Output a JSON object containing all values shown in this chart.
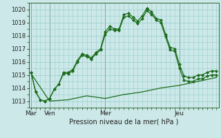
{
  "background_color": "#cce8e8",
  "grid_color": "#99cccc",
  "line_color": "#1a6b1a",
  "title": "Pression niveau de la mer( hPa )",
  "ylim": [
    1012.5,
    1020.5
  ],
  "yticks": [
    1013,
    1014,
    1015,
    1016,
    1017,
    1018,
    1019,
    1020
  ],
  "xlim": [
    -3,
    243
  ],
  "xlabel_ticks": [
    0,
    24,
    96,
    192,
    216
  ],
  "xlabel_labels": [
    "Mar",
    "Ven",
    "Mer",
    "Jeu",
    ""
  ],
  "vlines": [
    0,
    24,
    96,
    192
  ],
  "series1_x": [
    0,
    6,
    12,
    18,
    24,
    30,
    36,
    42,
    48,
    54,
    60,
    66,
    72,
    78,
    84,
    90,
    96,
    102,
    108,
    114,
    120,
    126,
    132,
    138,
    144,
    150,
    156,
    162,
    168,
    174,
    180,
    186,
    192,
    198,
    204,
    210,
    216,
    222,
    228,
    234,
    240
  ],
  "series1_y": [
    1015.2,
    1013.7,
    1013.1,
    1013.0,
    1013.2,
    1013.9,
    1014.3,
    1015.2,
    1015.2,
    1015.4,
    1016.1,
    1016.6,
    1016.5,
    1016.3,
    1016.7,
    1017.0,
    1018.3,
    1018.7,
    1018.5,
    1018.5,
    1019.6,
    1019.7,
    1019.4,
    1019.1,
    1019.5,
    1020.1,
    1019.8,
    1019.3,
    1019.2,
    1018.1,
    1017.1,
    1017.0,
    1015.8,
    1014.9,
    1014.8,
    1014.8,
    1015.0,
    1015.0,
    1015.2,
    1015.3,
    1015.3
  ],
  "series2_x": [
    0,
    6,
    12,
    18,
    24,
    30,
    36,
    42,
    48,
    54,
    60,
    66,
    72,
    78,
    84,
    90,
    96,
    102,
    108,
    114,
    120,
    126,
    132,
    138,
    144,
    150,
    156,
    162,
    168,
    174,
    180,
    186,
    192,
    198,
    204,
    210,
    216,
    222,
    228,
    234,
    240
  ],
  "series2_y": [
    1015.2,
    1013.7,
    1013.1,
    1013.0,
    1013.2,
    1013.9,
    1014.3,
    1015.1,
    1015.1,
    1015.3,
    1016.0,
    1016.5,
    1016.4,
    1016.2,
    1016.6,
    1016.9,
    1018.1,
    1018.5,
    1018.4,
    1018.4,
    1019.4,
    1019.5,
    1019.2,
    1018.9,
    1019.3,
    1019.9,
    1019.6,
    1019.2,
    1019.0,
    1017.9,
    1016.9,
    1016.8,
    1015.5,
    1014.6,
    1014.5,
    1014.5,
    1014.7,
    1014.7,
    1014.9,
    1015.0,
    1015.0
  ],
  "series3_x": [
    0,
    24,
    48,
    72,
    96,
    120,
    144,
    168,
    192,
    216,
    240
  ],
  "series3_y": [
    1015.1,
    1013.0,
    1013.1,
    1013.4,
    1013.2,
    1013.5,
    1013.7,
    1014.0,
    1014.2,
    1014.5,
    1014.8
  ]
}
